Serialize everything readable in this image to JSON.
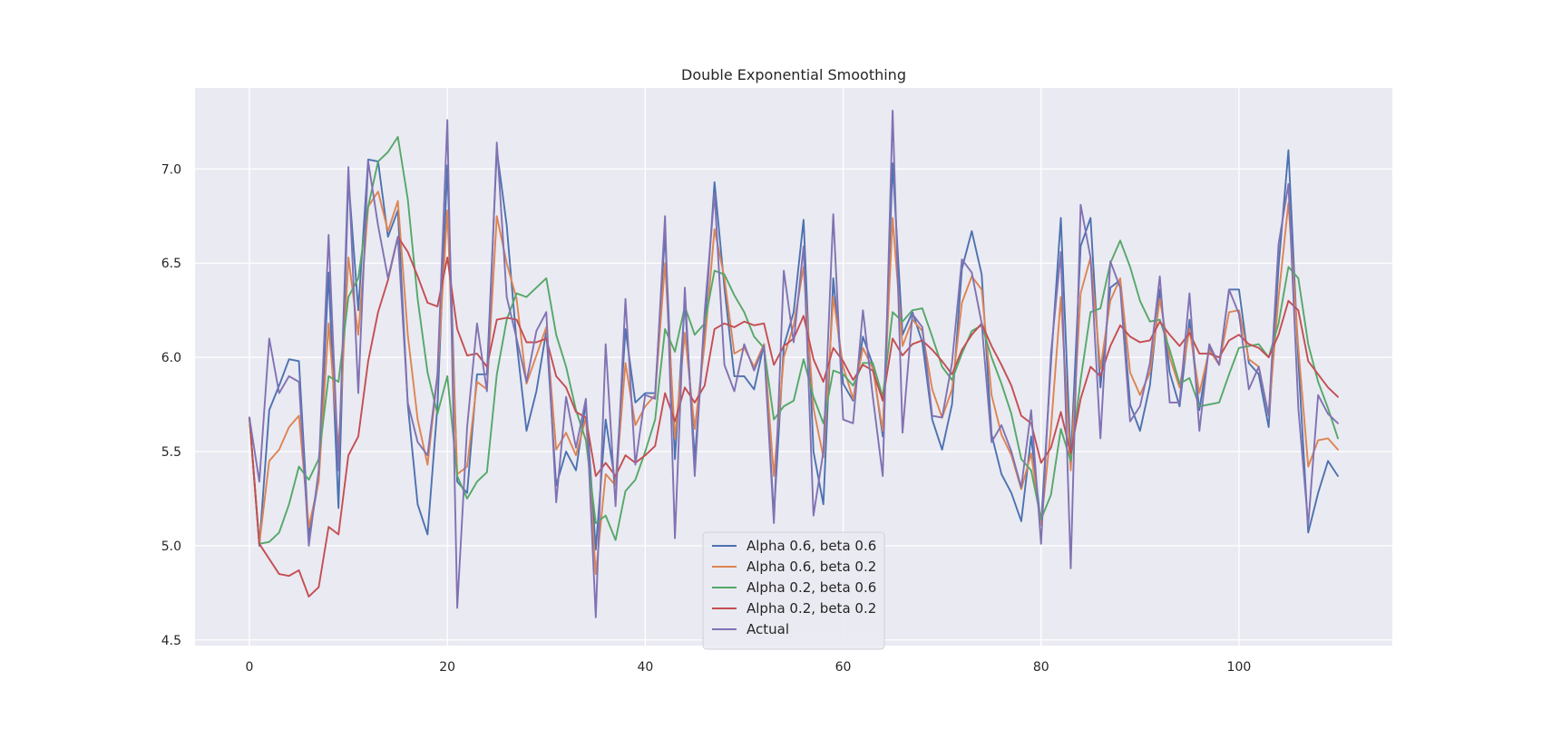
{
  "chart_data": {
    "type": "line",
    "title": "Double Exponential Smoothing",
    "xlabel": "",
    "ylabel": "",
    "xlim": [
      -5.5,
      115.5
    ],
    "ylim": [
      4.47,
      7.43
    ],
    "xticks": [
      0,
      20,
      40,
      60,
      80,
      100
    ],
    "yticks": [
      4.5,
      5.0,
      5.5,
      6.0,
      6.5,
      7.0
    ],
    "xtick_labels": [
      "0",
      "20",
      "40",
      "60",
      "80",
      "100"
    ],
    "ytick_labels": [
      "4.5",
      "5.0",
      "5.5",
      "6.0",
      "6.5",
      "7.0"
    ],
    "grid": true,
    "background": "#eaeaf2",
    "legend_position": "bottom-center",
    "x": [
      0,
      1,
      2,
      3,
      4,
      5,
      6,
      7,
      8,
      9,
      10,
      11,
      12,
      13,
      14,
      15,
      16,
      17,
      18,
      19,
      20,
      21,
      22,
      23,
      24,
      25,
      26,
      27,
      28,
      29,
      30,
      31,
      32,
      33,
      34,
      35,
      36,
      37,
      38,
      39,
      40,
      41,
      42,
      43,
      44,
      45,
      46,
      47,
      48,
      49,
      50,
      51,
      52,
      53,
      54,
      55,
      56,
      57,
      58,
      59,
      60,
      61,
      62,
      63,
      64,
      65,
      66,
      67,
      68,
      69,
      70,
      71,
      72,
      73,
      74,
      75,
      76,
      77,
      78,
      79,
      80,
      81,
      82,
      83,
      84,
      85,
      86,
      87,
      88,
      89,
      90,
      91,
      92,
      93,
      94,
      95,
      96,
      97,
      98,
      99,
      100,
      101,
      102,
      103,
      104,
      105,
      106,
      107,
      108,
      109,
      110
    ],
    "series": [
      {
        "name": "Alpha 0.6, beta 0.6",
        "color": "#4c72b0",
        "values": [
          5.68,
          5.0,
          5.72,
          5.85,
          5.99,
          5.98,
          5.05,
          5.35,
          6.45,
          5.2,
          6.95,
          6.25,
          7.05,
          7.04,
          6.64,
          6.78,
          5.75,
          5.22,
          5.06,
          5.74,
          7.02,
          5.34,
          5.28,
          5.91,
          5.91,
          7.1,
          6.7,
          6.08,
          5.61,
          5.82,
          6.14,
          5.32,
          5.5,
          5.4,
          5.76,
          4.98,
          5.67,
          5.32,
          6.15,
          5.76,
          5.81,
          5.81,
          6.66,
          5.46,
          6.3,
          5.46,
          6.15,
          6.93,
          6.37,
          5.9,
          5.9,
          5.83,
          6.07,
          5.16,
          6.06,
          6.24,
          6.73,
          5.5,
          5.22,
          6.42,
          5.86,
          5.77,
          6.11,
          5.96,
          5.58,
          7.03,
          6.12,
          6.24,
          6.08,
          5.67,
          5.51,
          5.75,
          6.47,
          6.67,
          6.44,
          5.59,
          5.38,
          5.28,
          5.13,
          5.58,
          5.11,
          5.97,
          6.74,
          5.45,
          6.59,
          6.74,
          5.84,
          6.37,
          6.41,
          5.75,
          5.61,
          5.85,
          6.36,
          5.92,
          5.74,
          6.2,
          5.72,
          6.06,
          5.96,
          6.36,
          6.36,
          5.97,
          5.91,
          5.63,
          6.48,
          7.1,
          5.98,
          5.07,
          5.28,
          5.45,
          5.37
        ]
      },
      {
        "name": "Alpha 0.6, beta 0.2",
        "color": "#dd8452",
        "values": [
          5.68,
          5.01,
          5.45,
          5.51,
          5.63,
          5.69,
          5.1,
          5.34,
          6.18,
          5.51,
          6.53,
          6.12,
          6.8,
          6.88,
          6.67,
          6.83,
          6.12,
          5.67,
          5.43,
          5.9,
          6.78,
          5.38,
          5.42,
          5.87,
          5.83,
          6.75,
          6.5,
          6.31,
          5.86,
          6.01,
          6.16,
          5.51,
          5.6,
          5.48,
          5.68,
          4.85,
          5.38,
          5.32,
          5.97,
          5.64,
          5.74,
          5.8,
          6.5,
          5.57,
          6.13,
          5.62,
          6.07,
          6.68,
          6.42,
          6.02,
          6.05,
          5.95,
          6.07,
          5.37,
          6.0,
          6.17,
          6.48,
          5.73,
          5.47,
          6.32,
          5.95,
          5.78,
          6.05,
          5.94,
          5.61,
          6.74,
          6.06,
          6.2,
          6.14,
          5.83,
          5.68,
          5.83,
          6.29,
          6.43,
          6.36,
          5.8,
          5.59,
          5.48,
          5.3,
          5.49,
          5.11,
          5.62,
          6.32,
          5.4,
          6.34,
          6.53,
          5.94,
          6.3,
          6.42,
          5.92,
          5.8,
          5.92,
          6.31,
          6.0,
          5.84,
          6.15,
          5.81,
          6.04,
          5.96,
          6.24,
          6.25,
          5.99,
          5.95,
          5.69,
          6.32,
          6.82,
          6.05,
          5.42,
          5.56,
          5.57,
          5.51
        ]
      },
      {
        "name": "Alpha 0.2, beta 0.6",
        "color": "#55a868",
        "values": [
          5.68,
          5.01,
          5.02,
          5.07,
          5.22,
          5.42,
          5.35,
          5.46,
          5.9,
          5.87,
          6.32,
          6.42,
          6.8,
          7.04,
          7.09,
          7.17,
          6.84,
          6.31,
          5.92,
          5.7,
          5.9,
          5.37,
          5.25,
          5.34,
          5.39,
          5.91,
          6.2,
          6.34,
          6.32,
          6.37,
          6.42,
          6.12,
          5.95,
          5.72,
          5.56,
          5.12,
          5.16,
          5.03,
          5.29,
          5.35,
          5.5,
          5.67,
          6.15,
          6.03,
          6.27,
          6.12,
          6.18,
          6.46,
          6.44,
          6.33,
          6.24,
          6.11,
          6.05,
          5.67,
          5.74,
          5.77,
          5.99,
          5.79,
          5.65,
          5.93,
          5.91,
          5.85,
          5.97,
          5.97,
          5.79,
          6.24,
          6.19,
          6.25,
          6.26,
          6.11,
          5.95,
          5.88,
          6.02,
          6.14,
          6.17,
          6.0,
          5.86,
          5.7,
          5.46,
          5.4,
          5.14,
          5.27,
          5.62,
          5.45,
          5.88,
          6.24,
          6.26,
          6.5,
          6.62,
          6.48,
          6.3,
          6.19,
          6.2,
          6.04,
          5.86,
          5.89,
          5.74,
          5.75,
          5.76,
          5.91,
          6.05,
          6.06,
          6.07,
          6.0,
          6.18,
          6.48,
          6.42,
          6.07,
          5.87,
          5.73,
          5.57
        ]
      },
      {
        "name": "Alpha 0.2, beta 0.2",
        "color": "#c44e52",
        "values": [
          5.68,
          5.01,
          4.93,
          4.85,
          4.84,
          4.87,
          4.73,
          4.78,
          5.1,
          5.06,
          5.48,
          5.58,
          5.98,
          6.24,
          6.41,
          6.64,
          6.56,
          6.43,
          6.29,
          6.27,
          6.53,
          6.15,
          6.01,
          6.02,
          5.95,
          6.2,
          6.21,
          6.2,
          6.08,
          6.08,
          6.1,
          5.9,
          5.84,
          5.71,
          5.68,
          5.37,
          5.44,
          5.37,
          5.48,
          5.44,
          5.48,
          5.53,
          5.81,
          5.66,
          5.84,
          5.76,
          5.85,
          6.15,
          6.18,
          6.16,
          6.19,
          6.17,
          6.18,
          5.96,
          6.06,
          6.1,
          6.22,
          5.99,
          5.87,
          6.05,
          5.98,
          5.88,
          5.96,
          5.93,
          5.77,
          6.1,
          6.01,
          6.07,
          6.09,
          6.04,
          5.98,
          5.91,
          6.04,
          6.12,
          6.18,
          6.06,
          5.96,
          5.85,
          5.69,
          5.65,
          5.44,
          5.52,
          5.71,
          5.49,
          5.78,
          5.95,
          5.9,
          6.06,
          6.17,
          6.11,
          6.08,
          6.09,
          6.19,
          6.12,
          6.06,
          6.13,
          6.02,
          6.02,
          6.0,
          6.09,
          6.12,
          6.07,
          6.05,
          6.0,
          6.12,
          6.3,
          6.25,
          5.98,
          5.91,
          5.84,
          5.79
        ]
      },
      {
        "name": "Actual",
        "color": "#8172b3",
        "values": [
          5.68,
          5.34,
          6.1,
          5.81,
          5.9,
          5.87,
          5.0,
          5.4,
          6.65,
          5.4,
          7.01,
          5.81,
          7.04,
          6.7,
          6.42,
          6.64,
          5.76,
          5.55,
          5.48,
          5.91,
          7.26,
          4.67,
          5.63,
          6.18,
          5.82,
          7.14,
          6.32,
          6.1,
          5.87,
          6.14,
          6.24,
          5.23,
          5.79,
          5.52,
          5.78,
          4.62,
          6.07,
          5.21,
          6.31,
          5.43,
          5.8,
          5.78,
          6.75,
          5.04,
          6.37,
          5.37,
          6.24,
          6.87,
          5.96,
          5.82,
          6.07,
          5.93,
          6.06,
          5.12,
          6.46,
          6.08,
          6.59,
          5.16,
          5.5,
          6.76,
          5.67,
          5.65,
          6.25,
          5.79,
          5.37,
          7.31,
          5.6,
          6.23,
          6.16,
          5.69,
          5.68,
          5.97,
          6.52,
          6.45,
          6.18,
          5.55,
          5.64,
          5.5,
          5.31,
          5.72,
          5.01,
          6.02,
          6.56,
          4.88,
          6.81,
          6.53,
          5.57,
          6.51,
          6.37,
          5.66,
          5.74,
          5.97,
          6.43,
          5.76,
          5.76,
          6.34,
          5.61,
          6.07,
          5.96,
          6.36,
          6.23,
          5.83,
          5.95,
          5.69,
          6.6,
          6.92,
          5.73,
          5.11,
          5.8,
          5.7,
          5.65
        ]
      }
    ]
  }
}
